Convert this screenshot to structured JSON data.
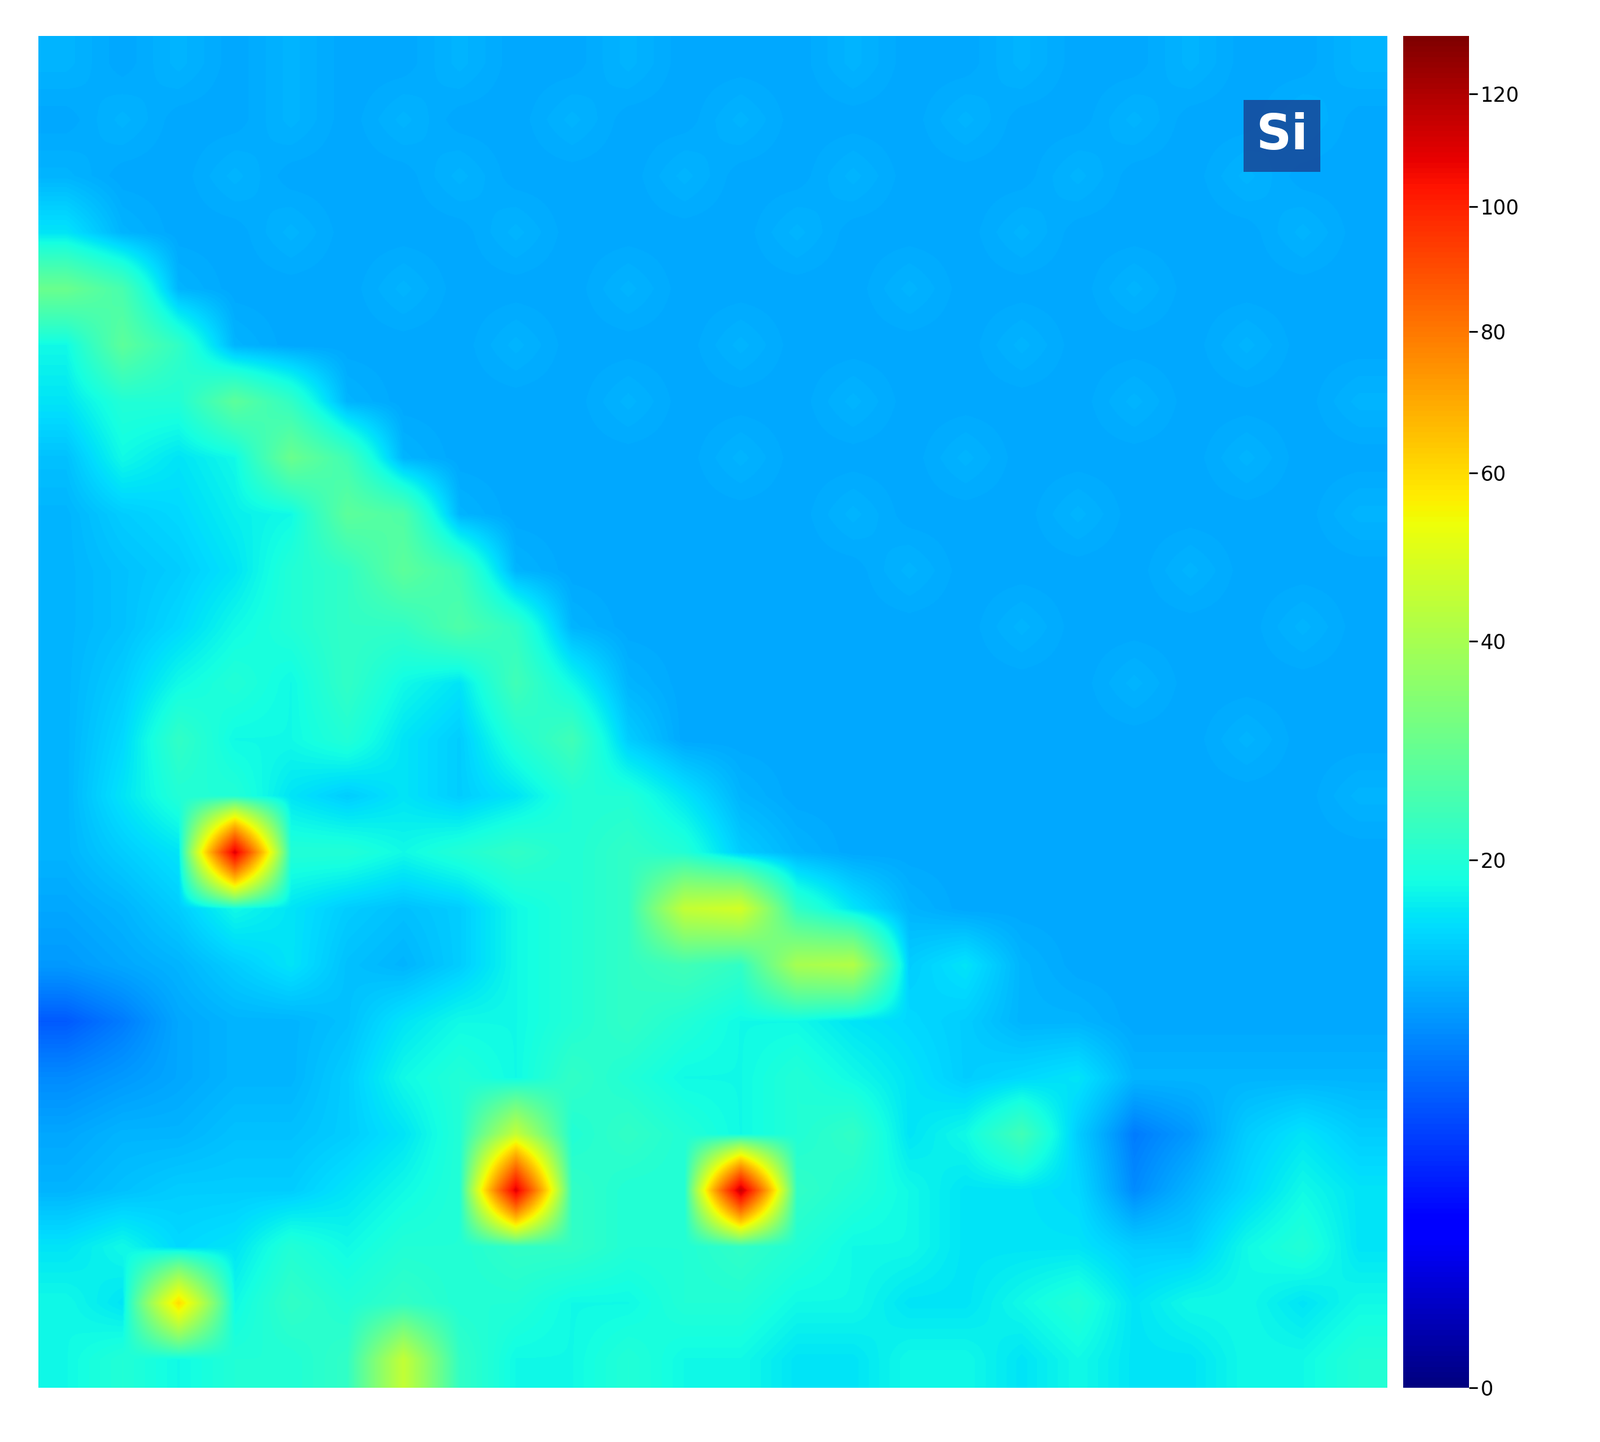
{
  "chart_data": {
    "type": "heatmap",
    "title": "Si",
    "tick_labels": false,
    "colorbar_range": [
      0,
      131
    ],
    "colorbar_ticks": [
      0,
      20,
      40,
      60,
      80,
      100,
      120
    ],
    "cells": [
      [
        12,
        11,
        12,
        11,
        12,
        11,
        11,
        12,
        11,
        11,
        12,
        11,
        11,
        11,
        12,
        11,
        11,
        12,
        11,
        11,
        12,
        11,
        11,
        12
      ],
      [
        11,
        12,
        11,
        11,
        12,
        11,
        12,
        11,
        11,
        12,
        11,
        11,
        12,
        11,
        11,
        11,
        12,
        11,
        11,
        12,
        11,
        11,
        12,
        11
      ],
      [
        12,
        11,
        11,
        12,
        11,
        11,
        11,
        12,
        11,
        11,
        11,
        12,
        11,
        11,
        12,
        11,
        11,
        11,
        12,
        11,
        11,
        12,
        11,
        11
      ],
      [
        16,
        12,
        11,
        11,
        12,
        11,
        11,
        11,
        12,
        11,
        11,
        11,
        11,
        12,
        11,
        11,
        11,
        12,
        11,
        11,
        11,
        11,
        12,
        11
      ],
      [
        30,
        25,
        12,
        11,
        11,
        11,
        12,
        11,
        11,
        11,
        12,
        11,
        11,
        11,
        11,
        12,
        11,
        11,
        11,
        12,
        11,
        11,
        11,
        11
      ],
      [
        18,
        28,
        22,
        12,
        11,
        11,
        11,
        11,
        12,
        11,
        11,
        11,
        12,
        11,
        11,
        11,
        11,
        12,
        11,
        11,
        11,
        12,
        11,
        11
      ],
      [
        16,
        20,
        20,
        28,
        22,
        12,
        11,
        11,
        11,
        11,
        12,
        11,
        11,
        11,
        12,
        11,
        11,
        11,
        11,
        12,
        11,
        11,
        11,
        12
      ],
      [
        13,
        18,
        16,
        18,
        30,
        24,
        12,
        11,
        11,
        11,
        11,
        11,
        12,
        11,
        11,
        11,
        12,
        11,
        11,
        11,
        11,
        12,
        11,
        11
      ],
      [
        12,
        14,
        15,
        17,
        18,
        28,
        26,
        12,
        11,
        11,
        11,
        11,
        11,
        11,
        12,
        11,
        11,
        11,
        12,
        11,
        11,
        11,
        11,
        12
      ],
      [
        12,
        13,
        14,
        16,
        20,
        22,
        28,
        24,
        12,
        11,
        11,
        11,
        11,
        11,
        11,
        12,
        11,
        11,
        11,
        11,
        12,
        11,
        11,
        11
      ],
      [
        12,
        13,
        15,
        18,
        20,
        22,
        22,
        26,
        22,
        12,
        11,
        11,
        11,
        11,
        11,
        11,
        11,
        12,
        11,
        11,
        11,
        11,
        12,
        11
      ],
      [
        12,
        14,
        18,
        20,
        18,
        22,
        18,
        16,
        24,
        18,
        12,
        11,
        11,
        11,
        11,
        11,
        11,
        11,
        11,
        12,
        11,
        11,
        11,
        11
      ],
      [
        12,
        15,
        22,
        18,
        18,
        20,
        16,
        14,
        20,
        24,
        14,
        11,
        11,
        11,
        11,
        11,
        11,
        11,
        11,
        11,
        11,
        12,
        11,
        11
      ],
      [
        12,
        16,
        20,
        20,
        16,
        14,
        16,
        14,
        16,
        20,
        20,
        16,
        12,
        11,
        11,
        11,
        11,
        11,
        11,
        11,
        11,
        11,
        11,
        12
      ],
      [
        12,
        14,
        16,
        110,
        20,
        20,
        18,
        20,
        22,
        20,
        22,
        20,
        14,
        12,
        11,
        11,
        11,
        11,
        11,
        11,
        11,
        11,
        11,
        11
      ],
      [
        11,
        12,
        14,
        18,
        16,
        14,
        13,
        14,
        18,
        20,
        22,
        45,
        48,
        22,
        16,
        12,
        11,
        11,
        11,
        11,
        11,
        11,
        11,
        11
      ],
      [
        10,
        11,
        12,
        14,
        16,
        13,
        12,
        14,
        18,
        20,
        22,
        24,
        22,
        40,
        42,
        14,
        16,
        12,
        11,
        11,
        11,
        11,
        11,
        11
      ],
      [
        6,
        8,
        11,
        12,
        12,
        13,
        16,
        18,
        18,
        20,
        22,
        20,
        18,
        18,
        16,
        15,
        14,
        12,
        12,
        11,
        11,
        11,
        11,
        11
      ],
      [
        9,
        10,
        11,
        12,
        12,
        14,
        18,
        20,
        18,
        22,
        20,
        18,
        18,
        20,
        18,
        16,
        14,
        15,
        16,
        12,
        12,
        12,
        12,
        12
      ],
      [
        11,
        12,
        12,
        13,
        13,
        14,
        16,
        20,
        45,
        20,
        22,
        20,
        18,
        20,
        22,
        16,
        18,
        24,
        14,
        8,
        10,
        14,
        16,
        14
      ],
      [
        12,
        13,
        14,
        14,
        14,
        16,
        18,
        20,
        110,
        22,
        20,
        20,
        115,
        22,
        20,
        18,
        16,
        16,
        15,
        9,
        12,
        15,
        18,
        16
      ],
      [
        16,
        18,
        15,
        16,
        20,
        18,
        20,
        20,
        22,
        22,
        20,
        20,
        22,
        20,
        18,
        18,
        16,
        16,
        16,
        14,
        14,
        18,
        20,
        16
      ],
      [
        18,
        16,
        60,
        18,
        22,
        20,
        22,
        20,
        20,
        18,
        18,
        20,
        20,
        18,
        18,
        16,
        16,
        18,
        20,
        16,
        18,
        18,
        16,
        18
      ],
      [
        18,
        20,
        18,
        20,
        20,
        22,
        45,
        22,
        18,
        18,
        20,
        18,
        18,
        16,
        16,
        18,
        18,
        16,
        18,
        16,
        16,
        18,
        18,
        20
      ]
    ]
  }
}
